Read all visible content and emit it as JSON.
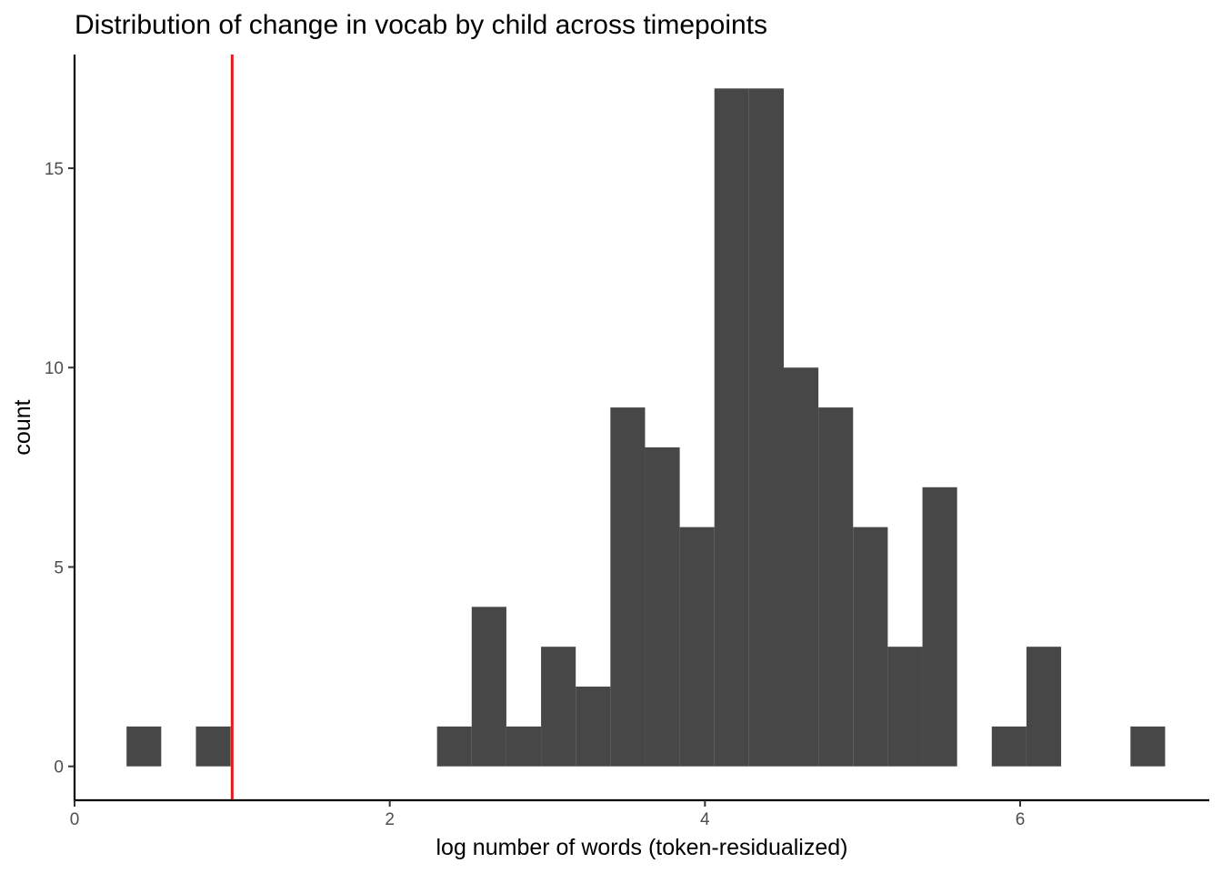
{
  "chart_data": {
    "type": "bar",
    "title": "Distribution of change in vocab by child across timepoints",
    "xlabel": "log number of words (token-residualized)",
    "ylabel": "count",
    "xlim": [
      0,
      7.2
    ],
    "ylim": [
      -0.85,
      17.85
    ],
    "xticks": [
      0,
      2,
      4,
      6
    ],
    "yticks": [
      0,
      5,
      10,
      15
    ],
    "bin_width": 0.22,
    "bins": [
      {
        "x0": 0.33,
        "x1": 0.55,
        "count": 1
      },
      {
        "x0": 0.77,
        "x1": 0.99,
        "count": 1
      },
      {
        "x0": 2.3,
        "x1": 2.52,
        "count": 1
      },
      {
        "x0": 2.52,
        "x1": 2.74,
        "count": 4
      },
      {
        "x0": 2.74,
        "x1": 2.96,
        "count": 1
      },
      {
        "x0": 2.96,
        "x1": 3.18,
        "count": 3
      },
      {
        "x0": 3.18,
        "x1": 3.4,
        "count": 2
      },
      {
        "x0": 3.4,
        "x1": 3.62,
        "count": 9
      },
      {
        "x0": 3.62,
        "x1": 3.84,
        "count": 8
      },
      {
        "x0": 3.84,
        "x1": 4.06,
        "count": 6
      },
      {
        "x0": 4.06,
        "x1": 4.28,
        "count": 17
      },
      {
        "x0": 4.28,
        "x1": 4.5,
        "count": 17
      },
      {
        "x0": 4.5,
        "x1": 4.72,
        "count": 10
      },
      {
        "x0": 4.72,
        "x1": 4.94,
        "count": 9
      },
      {
        "x0": 4.94,
        "x1": 5.16,
        "count": 6
      },
      {
        "x0": 5.16,
        "x1": 5.38,
        "count": 3
      },
      {
        "x0": 5.38,
        "x1": 5.6,
        "count": 7
      },
      {
        "x0": 5.82,
        "x1": 6.04,
        "count": 1
      },
      {
        "x0": 6.04,
        "x1": 6.26,
        "count": 3
      },
      {
        "x0": 6.7,
        "x1": 6.92,
        "count": 1
      }
    ],
    "vline": {
      "x": 1.0,
      "color": "#e41a1c"
    },
    "bar_color": "#474747",
    "grid": false,
    "legend": "none"
  }
}
